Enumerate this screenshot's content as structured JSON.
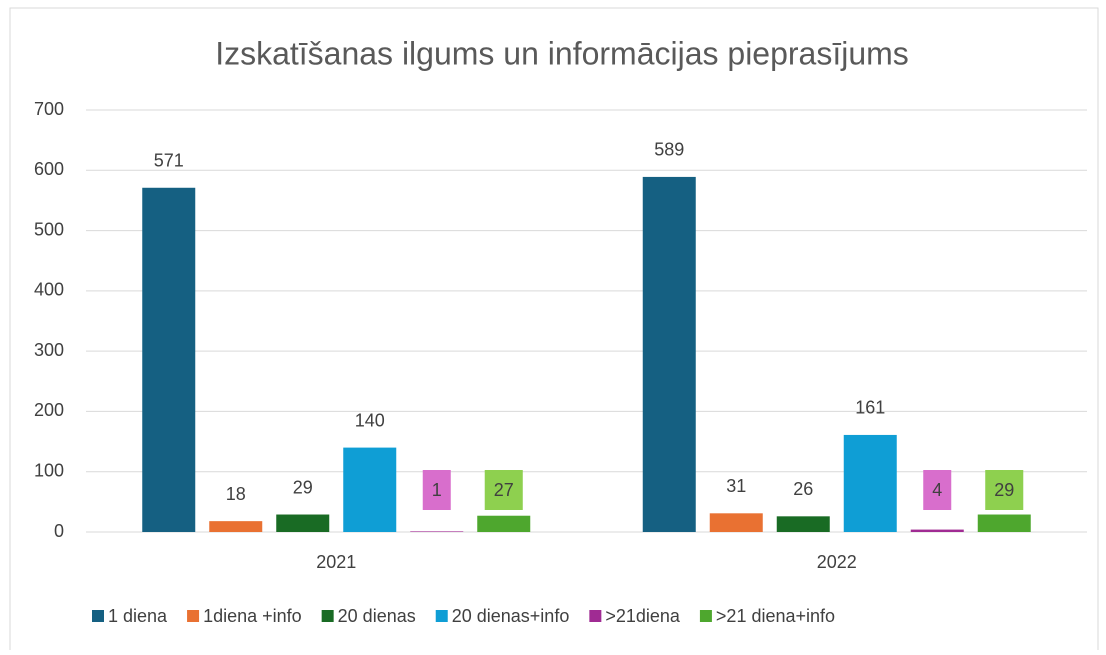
{
  "chart_data": {
    "type": "bar",
    "title": "Izskatīšanas ilgums un informācijas pieprasījums",
    "categories": [
      "2021",
      "2022"
    ],
    "series": [
      {
        "name": "1 diena",
        "color": "#156082",
        "values": [
          571,
          589
        ]
      },
      {
        "name": "1diena +info",
        "color": "#e97132",
        "values": [
          18,
          31
        ]
      },
      {
        "name": "20 dienas",
        "color": "#196b24",
        "values": [
          29,
          26
        ]
      },
      {
        "name": "20 dienas+info",
        "color": "#0f9ed5",
        "values": [
          140,
          161
        ]
      },
      {
        "name": ">21diena",
        "color": "#a02b93",
        "label_background": "#d86ecc",
        "values": [
          1,
          4
        ]
      },
      {
        "name": ">21 diena+info",
        "color": "#4ea72e",
        "label_background": "#8ed04f",
        "values": [
          27,
          29
        ]
      }
    ],
    "ylim": [
      0,
      700
    ],
    "yticks": [
      0,
      100,
      200,
      300,
      400,
      500,
      600,
      700
    ],
    "grid": true,
    "legend": "bottom"
  }
}
